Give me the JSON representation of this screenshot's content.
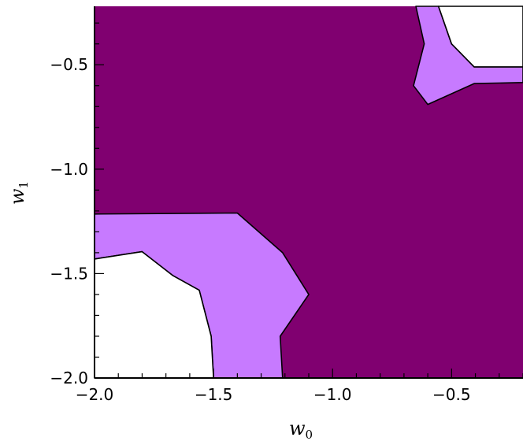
{
  "chart_data": {
    "type": "area",
    "title": "",
    "xlabel": "w",
    "xlabel_subscript": "0",
    "ylabel": "w",
    "ylabel_subscript": "1",
    "xlim": [
      -2.0,
      -0.2
    ],
    "ylim": [
      -2.0,
      -0.22
    ],
    "x_ticks": [
      -2.0,
      -1.5,
      -1.0,
      -0.5
    ],
    "x_tick_labels": [
      "−2.0",
      "−1.5",
      "−1.0",
      "−0.5"
    ],
    "y_ticks": [
      -2.0,
      -1.5,
      -1.0,
      -0.5
    ],
    "y_tick_labels": [
      "−2.0",
      "−1.5",
      "−1.0",
      "−0.5"
    ],
    "grid": false,
    "legend": "none",
    "colors": {
      "outer_region": "#800070",
      "inner_band": "#c77aff",
      "innermost": "#ffffff",
      "contour_line": "#000000",
      "axes": "#000000"
    },
    "series": [
      {
        "fill": "outer_region",
        "polygon": [
          [
            -2.0,
            -0.22
          ],
          [
            -0.2,
            -0.22
          ],
          [
            -0.2,
            -2.0
          ],
          [
            -2.0,
            -2.0
          ]
        ]
      },
      {
        "fill": "inner_band",
        "polygon": [
          [
            -2.0,
            -1.215
          ],
          [
            -1.4,
            -1.21
          ],
          [
            -1.21,
            -1.4
          ],
          [
            -1.1,
            -1.6
          ],
          [
            -1.22,
            -1.8
          ],
          [
            -1.21,
            -2.0
          ],
          [
            -1.5,
            -2.0
          ],
          [
            -1.51,
            -1.8
          ],
          [
            -1.56,
            -1.58
          ],
          [
            -1.67,
            -1.51
          ],
          [
            -1.8,
            -1.395
          ],
          [
            -1.83,
            -1.4
          ],
          [
            -2.0,
            -1.43
          ]
        ]
      },
      {
        "fill": "innermost",
        "polygon": [
          [
            -2.0,
            -1.43
          ],
          [
            -1.83,
            -1.4
          ],
          [
            -1.8,
            -1.395
          ],
          [
            -1.67,
            -1.51
          ],
          [
            -1.56,
            -1.58
          ],
          [
            -1.51,
            -1.8
          ],
          [
            -1.5,
            -2.0
          ],
          [
            -2.0,
            -2.0
          ]
        ]
      },
      {
        "fill": "inner_band",
        "polygon": [
          [
            -0.65,
            -0.22
          ],
          [
            -0.555,
            -0.22
          ],
          [
            -0.5,
            -0.4
          ],
          [
            -0.405,
            -0.51
          ],
          [
            -0.2,
            -0.51
          ],
          [
            -0.2,
            -0.585
          ],
          [
            -0.405,
            -0.59
          ],
          [
            -0.6,
            -0.69
          ],
          [
            -0.66,
            -0.6
          ],
          [
            -0.615,
            -0.4
          ]
        ]
      },
      {
        "fill": "innermost",
        "polygon": [
          [
            -0.555,
            -0.22
          ],
          [
            -0.2,
            -0.22
          ],
          [
            -0.2,
            -0.51
          ],
          [
            -0.405,
            -0.51
          ],
          [
            -0.5,
            -0.4
          ]
        ]
      }
    ]
  }
}
